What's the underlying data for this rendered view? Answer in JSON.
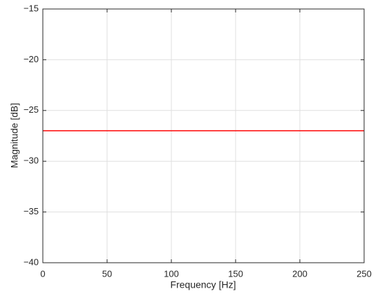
{
  "chart_data": {
    "type": "line",
    "x_label": "Frequency [Hz]",
    "y_label": "Magnitude [dB]",
    "x": [
      0,
      250
    ],
    "series": [
      {
        "name": null,
        "color": "#ff0000",
        "values": [
          -27,
          -27
        ]
      }
    ],
    "xlim": [
      0,
      250
    ],
    "xticks": [
      0,
      50,
      100,
      150,
      200,
      250
    ],
    "ylim": [
      -40,
      -15
    ],
    "yticks": [
      {
        "value": -40,
        "label": "−40"
      },
      {
        "value": -35,
        "label": "−35"
      },
      {
        "value": -30,
        "label": "−30"
      },
      {
        "value": -25,
        "label": "−25"
      },
      {
        "value": -20,
        "label": "−20"
      },
      {
        "value": -15,
        "label": "−15"
      }
    ],
    "grid": true
  }
}
